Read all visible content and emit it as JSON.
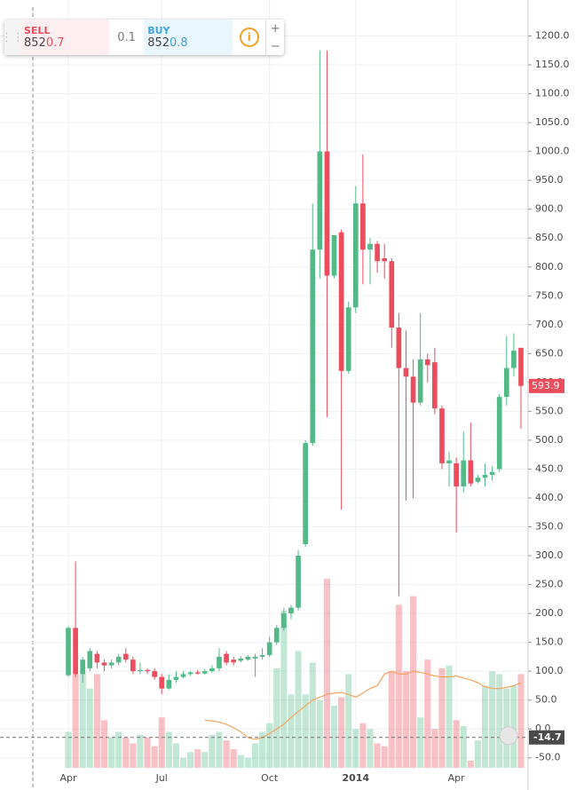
{
  "chart_data": {
    "type": "candlestick",
    "categories": [
      "Apr",
      null,
      null,
      null,
      null,
      null,
      null,
      null,
      null,
      null,
      null,
      null,
      null,
      "Jul",
      null,
      null,
      null,
      null,
      null,
      null,
      null,
      null,
      null,
      null,
      null,
      null,
      null,
      null,
      "Oct",
      null,
      null,
      null,
      null,
      null,
      null,
      null,
      null,
      null,
      null,
      null,
      "2014",
      null,
      null,
      null,
      null,
      null,
      null,
      null,
      null,
      null,
      null,
      null,
      null,
      null,
      "Apr",
      null,
      null,
      null,
      null,
      null,
      null,
      null,
      null,
      null
    ],
    "open": [
      93,
      175,
      95,
      105,
      130,
      115,
      110,
      115,
      130,
      120,
      100,
      102,
      100,
      90,
      70,
      85,
      90,
      95,
      98,
      96,
      100,
      105,
      130,
      120,
      118,
      120,
      122,
      125,
      128,
      150,
      175,
      200,
      210,
      320,
      495,
      830,
      1000,
      785,
      860,
      620,
      730,
      910,
      830,
      840,
      815,
      810,
      695,
      625,
      610,
      565,
      640,
      635,
      555,
      460,
      460,
      420,
      465,
      428,
      435,
      440,
      450,
      575,
      625,
      660
    ],
    "high": [
      178,
      290,
      125,
      140,
      135,
      120,
      120,
      130,
      140,
      125,
      115,
      105,
      105,
      95,
      95,
      100,
      100,
      100,
      102,
      104,
      110,
      140,
      135,
      125,
      126,
      128,
      130,
      140,
      160,
      180,
      210,
      215,
      310,
      500,
      910,
      1175,
      1175,
      855,
      865,
      740,
      940,
      995,
      850,
      845,
      840,
      815,
      720,
      690,
      640,
      720,
      650,
      660,
      560,
      480,
      470,
      515,
      530,
      440,
      460,
      455,
      580,
      680,
      685,
      660
    ],
    "low": [
      90,
      90,
      80,
      100,
      105,
      100,
      105,
      110,
      115,
      95,
      95,
      95,
      85,
      60,
      68,
      80,
      88,
      92,
      94,
      94,
      98,
      100,
      110,
      110,
      115,
      118,
      90,
      120,
      125,
      145,
      170,
      190,
      205,
      315,
      490,
      780,
      540,
      780,
      380,
      615,
      720,
      770,
      770,
      790,
      780,
      660,
      230,
      395,
      400,
      560,
      600,
      545,
      450,
      420,
      340,
      410,
      420,
      425,
      420,
      430,
      445,
      560,
      610,
      520
    ],
    "close": [
      175,
      95,
      120,
      135,
      115,
      110,
      115,
      125,
      120,
      100,
      102,
      100,
      90,
      70,
      85,
      90,
      95,
      98,
      96,
      100,
      105,
      125,
      115,
      115,
      122,
      125,
      125,
      128,
      150,
      175,
      200,
      210,
      300,
      495,
      830,
      1000,
      785,
      855,
      620,
      730,
      910,
      830,
      840,
      810,
      810,
      695,
      625,
      610,
      565,
      640,
      630,
      555,
      460,
      465,
      420,
      465,
      425,
      435,
      440,
      445,
      575,
      625,
      655,
      594
    ],
    "volume": [
      -5,
      95,
      95,
      70,
      95,
      15,
      -15,
      -5,
      -15,
      -25,
      -10,
      -15,
      -30,
      20,
      -5,
      -25,
      -50,
      -40,
      -35,
      -40,
      -10,
      -5,
      -20,
      -35,
      -45,
      -50,
      -25,
      -5,
      10,
      105,
      205,
      60,
      135,
      60,
      115,
      50,
      260,
      40,
      55,
      95,
      0,
      10,
      0,
      -25,
      -30,
      100,
      215,
      100,
      230,
      20,
      120,
      0,
      105,
      110,
      15,
      5,
      -55,
      -20,
      75,
      100,
      95,
      70,
      75,
      95
    ],
    "ma": [
      null,
      null,
      null,
      null,
      null,
      null,
      null,
      null,
      null,
      null,
      null,
      null,
      null,
      null,
      null,
      null,
      null,
      null,
      null,
      15,
      14,
      12,
      8,
      2,
      -5,
      -15,
      -18,
      -15,
      -8,
      0,
      8,
      20,
      30,
      40,
      50,
      55,
      60,
      62,
      63,
      60,
      55,
      62,
      70,
      75,
      95,
      100,
      95,
      95,
      100,
      98,
      95,
      92,
      90,
      90,
      92,
      88,
      85,
      80,
      73,
      70,
      70,
      72,
      75,
      80
    ],
    "ylim": [
      -75,
      1250
    ],
    "yticks": [
      {
        "value": -50,
        "label": "-50.0"
      },
      {
        "value": 0,
        "label": "0.0"
      },
      {
        "value": 50,
        "label": "50.0"
      },
      {
        "value": 100,
        "label": "100.0"
      },
      {
        "value": 150,
        "label": "150.0"
      },
      {
        "value": 200,
        "label": "200.0"
      },
      {
        "value": 250,
        "label": "250.0"
      },
      {
        "value": 300,
        "label": "300.0"
      },
      {
        "value": 350,
        "label": "350.0"
      },
      {
        "value": 400,
        "label": "400.0"
      },
      {
        "value": 450,
        "label": "450.0"
      },
      {
        "value": 500,
        "label": "500.0"
      },
      {
        "value": 550,
        "label": "550.0"
      },
      {
        "value": 600,
        "label": "600.0"
      },
      {
        "value": 650,
        "label": "650.0"
      },
      {
        "value": 700,
        "label": "700.0"
      },
      {
        "value": 750,
        "label": "750.0"
      },
      {
        "value": 800,
        "label": "800.0"
      },
      {
        "value": 850,
        "label": "850.0"
      },
      {
        "value": 900,
        "label": "900.0"
      },
      {
        "value": 950,
        "label": "950.0"
      },
      {
        "value": 1000,
        "label": "1000.0"
      },
      {
        "value": 1050,
        "label": "1050.0"
      },
      {
        "value": 1100,
        "label": "1100.0"
      },
      {
        "value": 1150,
        "label": "1150.0"
      },
      {
        "value": 1200,
        "label": "1200.0"
      }
    ],
    "up_color": "#53b987",
    "down_color": "#eb4d5c",
    "ma_color": "#f7a35c",
    "last_price": 593.9,
    "crosshair": {
      "value": -14.7,
      "label": "-14.7"
    },
    "grid": true
  },
  "widget": {
    "sell_label": "SELL",
    "sell_int": "852",
    "sell_frac": "0.7",
    "spread": "0.1",
    "buy_label": "BUY",
    "buy_int": "852",
    "buy_frac": "0.8",
    "info": "i",
    "plus": "+",
    "minus": "−"
  }
}
